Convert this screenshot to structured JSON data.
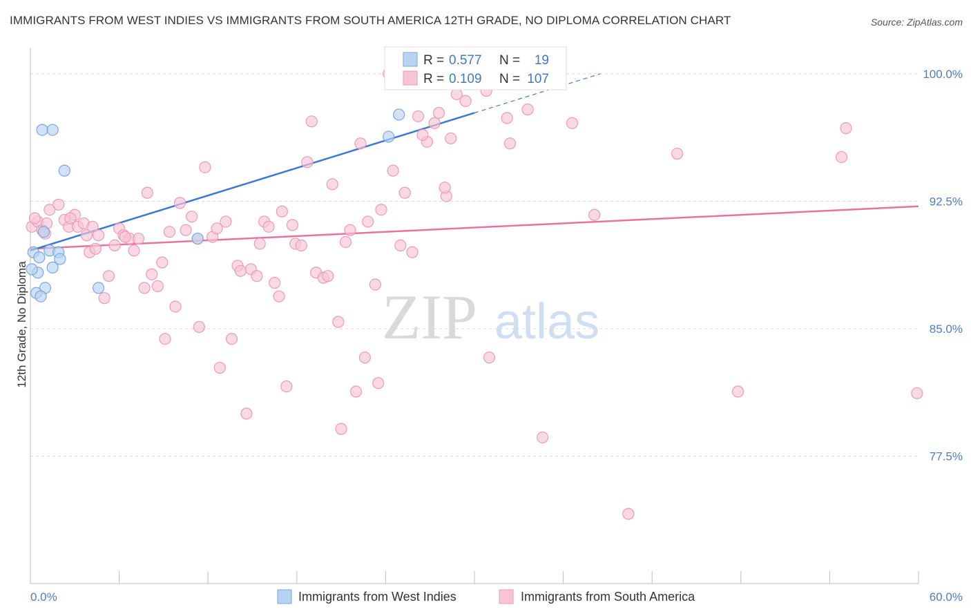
{
  "title": "IMMIGRANTS FROM WEST INDIES VS IMMIGRANTS FROM SOUTH AMERICA 12TH GRADE, NO DIPLOMA CORRELATION CHART",
  "source": "Source: ZipAtlas.com",
  "watermark": {
    "zip": "ZIP",
    "atlas": "atlas"
  },
  "colors": {
    "blue": "#3a78d4",
    "blue_fill": "#b9d2f3",
    "pink": "#e8739c",
    "pink_fill": "#f7c4d5",
    "tick_text": "#4a7cc8",
    "grid": "#d8d8d8"
  },
  "legend_top": {
    "rows": [
      {
        "r_label": "R = ",
        "r_value": "0.577",
        "n_label": "N = ",
        "n_value": "19"
      },
      {
        "r_label": "R = ",
        "r_value": "0.109",
        "n_label": "N = ",
        "n_value": "107"
      }
    ]
  },
  "chart_data": {
    "type": "scatter",
    "title": "IMMIGRANTS FROM WEST INDIES VS IMMIGRANTS FROM SOUTH AMERICA 12TH GRADE, NO DIPLOMA CORRELATION CHART",
    "xlabel": "",
    "ylabel": "12th Grade, No Diploma",
    "xlim": [
      0,
      60
    ],
    "ylim": [
      70.0,
      101.5
    ],
    "x_tick_labels": [
      "0.0%",
      "60.0%"
    ],
    "y_ticks": [
      77.5,
      85.0,
      92.5,
      100.0
    ],
    "y_tick_labels": [
      "77.5%",
      "85.0%",
      "92.5%",
      "100.0%"
    ],
    "grid": true,
    "legend_position": "top-center",
    "series": [
      {
        "name": "Immigrants from West Indies",
        "color": "#3a78d4",
        "trend": {
          "x": [
            0,
            30
          ],
          "y": [
            89.6,
            97.7
          ],
          "dashed_to": [
            38.5,
            100.0
          ]
        },
        "points": [
          [
            0.8,
            96.7
          ],
          [
            1.5,
            96.7
          ],
          [
            2.3,
            94.3
          ],
          [
            0.2,
            89.5
          ],
          [
            0.6,
            89.2
          ],
          [
            1.3,
            89.6
          ],
          [
            1.9,
            89.5
          ],
          [
            0.9,
            90.7
          ],
          [
            1.5,
            88.6
          ],
          [
            2.0,
            89.1
          ],
          [
            0.5,
            88.3
          ],
          [
            0.1,
            88.5
          ],
          [
            1.0,
            87.4
          ],
          [
            0.4,
            87.1
          ],
          [
            0.7,
            86.9
          ],
          [
            4.6,
            87.4
          ],
          [
            11.3,
            90.3
          ],
          [
            24.2,
            96.3
          ],
          [
            24.9,
            97.6
          ]
        ]
      },
      {
        "name": "Immigrants from South America",
        "color": "#e8739c",
        "trend": {
          "x": [
            0,
            60
          ],
          "y": [
            89.7,
            92.2
          ]
        },
        "points": [
          [
            0.1,
            91.0
          ],
          [
            0.5,
            91.3
          ],
          [
            0.8,
            90.8
          ],
          [
            1.0,
            90.6
          ],
          [
            1.3,
            92.0
          ],
          [
            1.9,
            92.3
          ],
          [
            2.3,
            91.4
          ],
          [
            2.6,
            91.0
          ],
          [
            3.0,
            91.7
          ],
          [
            3.2,
            91.0
          ],
          [
            3.6,
            91.2
          ],
          [
            3.8,
            90.5
          ],
          [
            4.0,
            89.5
          ],
          [
            4.4,
            89.7
          ],
          [
            4.6,
            90.5
          ],
          [
            5.0,
            86.8
          ],
          [
            5.3,
            88.1
          ],
          [
            5.7,
            89.9
          ],
          [
            6.0,
            90.9
          ],
          [
            6.3,
            90.5
          ],
          [
            6.7,
            90.3
          ],
          [
            7.0,
            89.6
          ],
          [
            7.3,
            90.3
          ],
          [
            7.7,
            87.4
          ],
          [
            7.9,
            93.0
          ],
          [
            8.2,
            88.2
          ],
          [
            8.6,
            87.5
          ],
          [
            8.9,
            88.9
          ],
          [
            9.1,
            84.4
          ],
          [
            9.4,
            90.7
          ],
          [
            9.8,
            86.3
          ],
          [
            10.1,
            92.4
          ],
          [
            10.5,
            90.8
          ],
          [
            10.9,
            91.6
          ],
          [
            11.3,
            90.3
          ],
          [
            11.4,
            85.1
          ],
          [
            11.8,
            94.5
          ],
          [
            12.3,
            90.4
          ],
          [
            12.6,
            90.9
          ],
          [
            12.8,
            82.7
          ],
          [
            13.2,
            91.3
          ],
          [
            13.6,
            84.4
          ],
          [
            14.0,
            88.7
          ],
          [
            14.2,
            88.4
          ],
          [
            14.6,
            80.0
          ],
          [
            14.9,
            88.5
          ],
          [
            15.3,
            88.1
          ],
          [
            15.5,
            90.0
          ],
          [
            15.8,
            91.3
          ],
          [
            16.1,
            91.0
          ],
          [
            16.5,
            87.7
          ],
          [
            16.8,
            86.9
          ],
          [
            17.0,
            91.9
          ],
          [
            17.3,
            81.6
          ],
          [
            17.7,
            91.1
          ],
          [
            17.9,
            90.0
          ],
          [
            18.3,
            89.9
          ],
          [
            18.7,
            94.8
          ],
          [
            19.0,
            97.2
          ],
          [
            19.3,
            88.3
          ],
          [
            19.8,
            88.0
          ],
          [
            20.1,
            88.1
          ],
          [
            20.4,
            93.5
          ],
          [
            20.8,
            85.4
          ],
          [
            21.0,
            79.1
          ],
          [
            21.3,
            90.1
          ],
          [
            21.6,
            90.8
          ],
          [
            22.0,
            81.3
          ],
          [
            22.3,
            95.9
          ],
          [
            22.6,
            83.3
          ],
          [
            22.8,
            91.3
          ],
          [
            23.3,
            87.6
          ],
          [
            23.5,
            81.8
          ],
          [
            23.7,
            92.0
          ],
          [
            24.2,
            100.0
          ],
          [
            24.5,
            94.3
          ],
          [
            25.0,
            89.9
          ],
          [
            25.3,
            93.0
          ],
          [
            25.8,
            89.5
          ],
          [
            26.2,
            97.5
          ],
          [
            26.8,
            96.0
          ],
          [
            27.3,
            97.1
          ],
          [
            27.6,
            97.7
          ],
          [
            28.1,
            92.8
          ],
          [
            28.4,
            96.2
          ],
          [
            28.0,
            93.3
          ],
          [
            28.8,
            98.8
          ],
          [
            29.4,
            98.4
          ],
          [
            30.8,
            99.0
          ],
          [
            32.2,
            97.4
          ],
          [
            32.4,
            95.9
          ],
          [
            33.6,
            97.9
          ],
          [
            34.6,
            78.6
          ],
          [
            35.3,
            100.0
          ],
          [
            36.6,
            97.1
          ],
          [
            38.1,
            91.7
          ],
          [
            40.4,
            74.1
          ],
          [
            43.7,
            95.3
          ],
          [
            47.8,
            81.3
          ],
          [
            54.8,
            95.1
          ],
          [
            55.1,
            96.8
          ],
          [
            59.9,
            81.2
          ],
          [
            0.3,
            91.5
          ],
          [
            1.1,
            91.2
          ],
          [
            2.7,
            91.5
          ],
          [
            4.2,
            91.0
          ],
          [
            26.5,
            96.4
          ],
          [
            31.0,
            83.3
          ],
          [
            6.4,
            90.4
          ]
        ]
      }
    ]
  },
  "bottom_legend": {
    "items": [
      {
        "label": "Immigrants from West Indies"
      },
      {
        "label": "Immigrants from South America"
      }
    ]
  }
}
